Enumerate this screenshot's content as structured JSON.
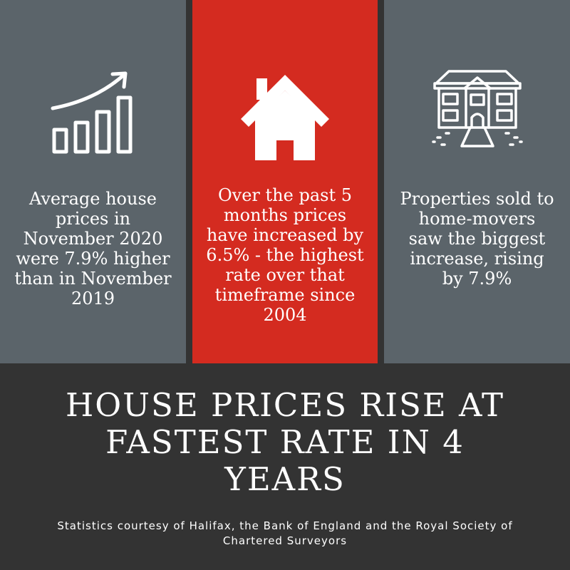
{
  "stats": {
    "left": {
      "icon": "rising-bar-chart-icon",
      "text": "Average house prices in November 2020 were 7.9% higher than in November 2019"
    },
    "center": {
      "icon": "house-icon",
      "text": "Over the past 5 months prices have increased by 6.5% - the highest rate over that timeframe since 2004"
    },
    "right": {
      "icon": "mansion-icon",
      "text": "Properties sold to home-movers saw the biggest increase, rising by 7.9%"
    }
  },
  "headline": "HOUSE PRICES RISE AT FASTEST RATE IN 4 YEARS",
  "credits": "Statistics courtesy of Halifax, the Bank of England and the Royal Society of Chartered Surveyors",
  "colors": {
    "panel_gray": "#5b646a",
    "accent_red": "#d42b20",
    "footer_dark": "#333333",
    "text": "#ffffff"
  }
}
